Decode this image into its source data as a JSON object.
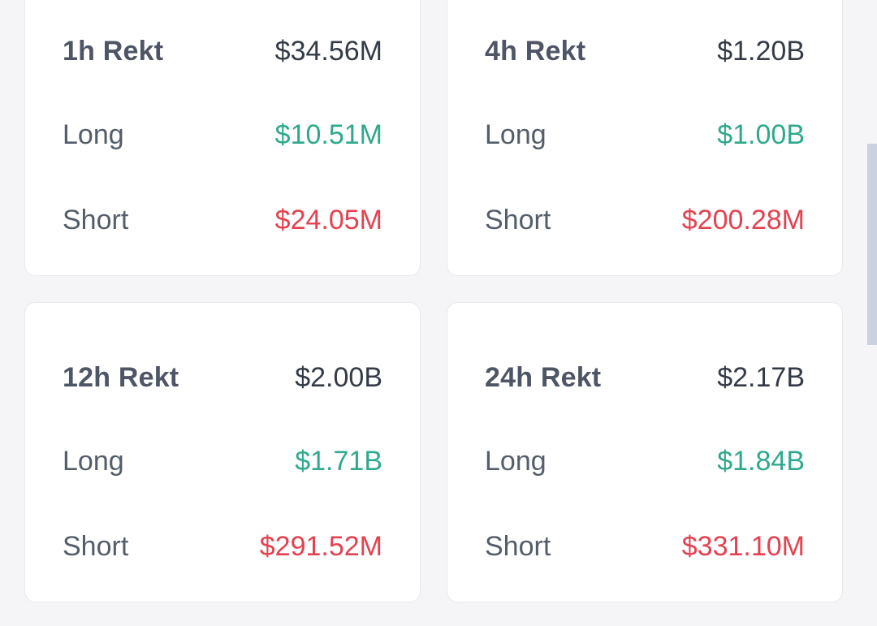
{
  "colors": {
    "page_bg": "#f5f5f7",
    "card_bg": "#ffffff",
    "card_border": "#e9e9eb",
    "title": "#4e5565",
    "value": "#343b47",
    "label": "#545d6a",
    "long": "#2fa98c",
    "short": "#e34250",
    "scrollbar_thumb": "#cbd1de"
  },
  "cards": [
    {
      "title": "1h Rekt",
      "total": "$34.56M",
      "long_label": "Long",
      "long_value": "$10.51M",
      "short_label": "Short",
      "short_value": "$24.05M"
    },
    {
      "title": "4h Rekt",
      "total": "$1.20B",
      "long_label": "Long",
      "long_value": "$1.00B",
      "short_label": "Short",
      "short_value": "$200.28M"
    },
    {
      "title": "12h Rekt",
      "total": "$2.00B",
      "long_label": "Long",
      "long_value": "$1.71B",
      "short_label": "Short",
      "short_value": "$291.52M"
    },
    {
      "title": "24h Rekt",
      "total": "$2.17B",
      "long_label": "Long",
      "long_value": "$1.84B",
      "short_label": "Short",
      "short_value": "$331.10M"
    }
  ]
}
